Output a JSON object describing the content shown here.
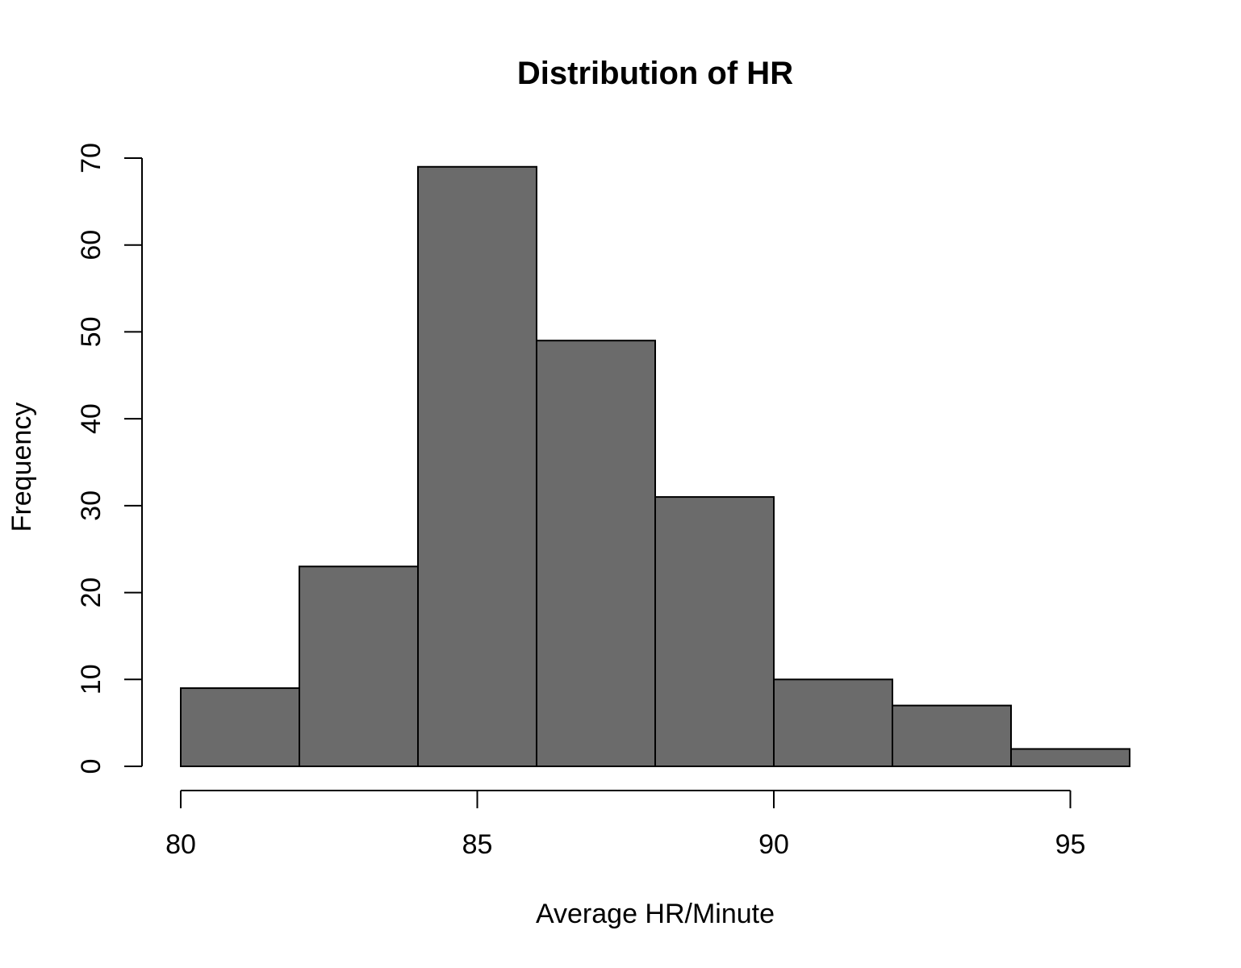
{
  "chart_data": {
    "type": "bar",
    "subtype": "histogram",
    "title": "Distribution of HR",
    "xlabel": "Average HR/Minute",
    "ylabel": "Frequency",
    "bins": [
      {
        "start": 80,
        "end": 82,
        "count": 9
      },
      {
        "start": 82,
        "end": 84,
        "count": 23
      },
      {
        "start": 84,
        "end": 86,
        "count": 69
      },
      {
        "start": 86,
        "end": 88,
        "count": 49
      },
      {
        "start": 88,
        "end": 90,
        "count": 31
      },
      {
        "start": 90,
        "end": 92,
        "count": 10
      },
      {
        "start": 92,
        "end": 94,
        "count": 7
      },
      {
        "start": 94,
        "end": 96,
        "count": 2
      }
    ],
    "x_ticks": [
      80,
      85,
      90,
      95
    ],
    "y_ticks": [
      0,
      10,
      20,
      30,
      40,
      50,
      60,
      70
    ],
    "xlim": [
      80,
      96
    ],
    "ylim": [
      0,
      70
    ],
    "bar_color": "#6b6b6b",
    "grid": false,
    "legend": "none"
  }
}
